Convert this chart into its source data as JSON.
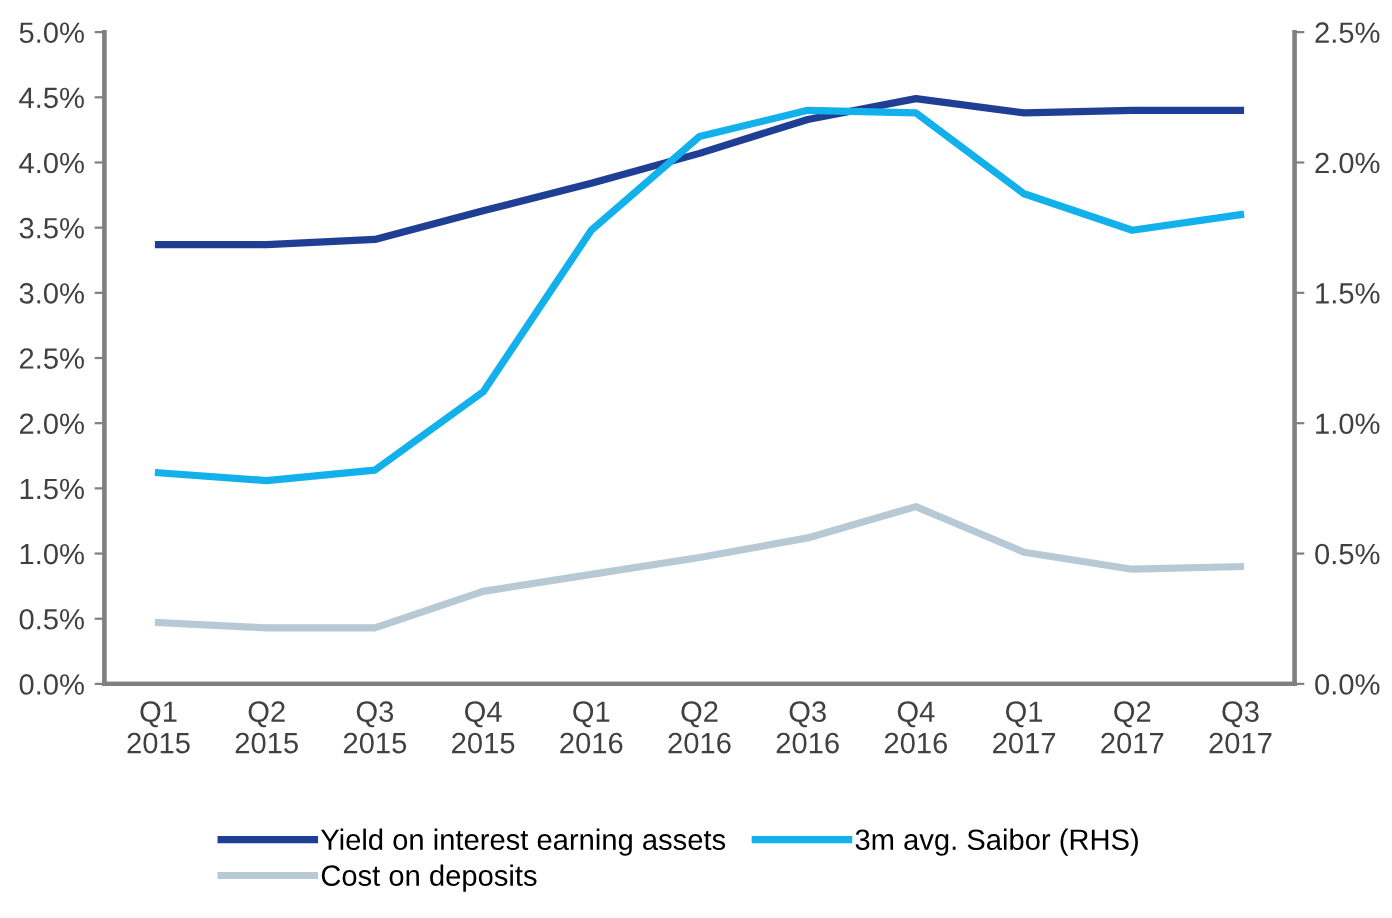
{
  "chart_data": {
    "type": "line",
    "categories": [
      "Q1\n2015",
      "Q2\n2015",
      "Q3\n2015",
      "Q4\n2015",
      "Q1\n2016",
      "Q2\n2016",
      "Q3\n2016",
      "Q4\n2016",
      "Q1\n2017",
      "Q2\n2017",
      "Q3\n2017"
    ],
    "series": [
      {
        "name": "Yield on interest earning assets",
        "color": "#1f3f94",
        "values": [
          3.37,
          3.37,
          3.41,
          3.63,
          3.84,
          4.07,
          4.33,
          4.49,
          4.38,
          4.4,
          4.4
        ]
      },
      {
        "name": "Cost on deposits",
        "color": "#b8c9d6",
        "values": [
          0.47,
          0.43,
          0.43,
          0.71,
          0.84,
          0.97,
          1.12,
          1.36,
          1.01,
          0.88,
          0.9
        ]
      },
      {
        "name": "3m avg. Saibor (RHS)",
        "color": "#12b1ec",
        "axis": "y2",
        "values": [
          0.81,
          0.78,
          0.82,
          1.12,
          1.74,
          2.1,
          2.2,
          2.19,
          1.88,
          1.74,
          1.8
        ]
      }
    ],
    "ylim": [
      0,
      5
    ],
    "yticks": [
      {
        "value": 0,
        "label": "0.0%"
      },
      {
        "value": 0.5,
        "label": "0.5%"
      },
      {
        "value": 1,
        "label": "1.0%"
      },
      {
        "value": 1.5,
        "label": "1.5%"
      },
      {
        "value": 2,
        "label": "2.0%"
      },
      {
        "value": 2.5,
        "label": "2.5%"
      },
      {
        "value": 3,
        "label": "3.0%"
      },
      {
        "value": 3.5,
        "label": "3.5%"
      },
      {
        "value": 4,
        "label": "4.0%"
      },
      {
        "value": 4.5,
        "label": "4.5%"
      },
      {
        "value": 5,
        "label": "5.0%"
      }
    ],
    "y2lim": [
      0,
      2.5
    ],
    "y2ticks": [
      {
        "value": 0,
        "label": "0.0%"
      },
      {
        "value": 0.5,
        "label": "0.5%"
      },
      {
        "value": 1,
        "label": "1.0%"
      },
      {
        "value": 1.5,
        "label": "1.5%"
      },
      {
        "value": 2,
        "label": "2.0%"
      },
      {
        "value": 2.5,
        "label": "2.5%"
      }
    ],
    "grid": false,
    "legend": "bottom",
    "marker": "none",
    "line_style": "solid"
  }
}
